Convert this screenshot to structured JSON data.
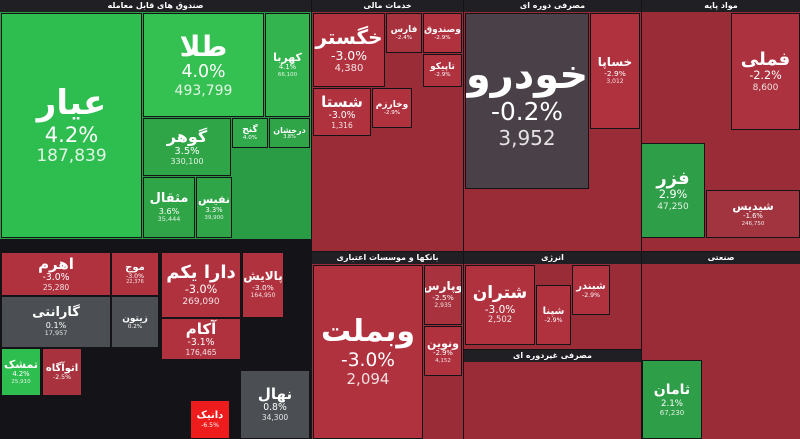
{
  "sectors": [
    {
      "name": "صندوق های قابل معامله",
      "color": "#2a9c46"
    },
    {
      "name": "خدمات مالی",
      "color": "#9a2c38"
    },
    {
      "name": "مصرفی دوره ای",
      "color": "#9a2c38"
    },
    {
      "name": "مواد پایه",
      "color": "#9a2c38"
    },
    {
      "name": "بانکها و موسسات اعتباری",
      "color": "#9a2c38"
    },
    {
      "name": "انرژی",
      "color": "#9a2c38"
    },
    {
      "name": "مصرفی غیردوره ای",
      "color": "#9a2c38"
    },
    {
      "name": "صنعتی",
      "color": "#9a2c38"
    }
  ],
  "tiles": [
    {
      "name": "عیار",
      "change": "4.2%",
      "price": "187,839",
      "color": "#2ebd4f"
    },
    {
      "name": "طلا",
      "change": "4.0%",
      "price": "493,799",
      "color": "#35c052"
    },
    {
      "name": "کهربا",
      "change": "4.1%",
      "price": "66,100",
      "color": "#34b44f"
    },
    {
      "name": "گوهر",
      "change": "3.5%",
      "price": "330,100",
      "color": "#2fa548"
    },
    {
      "name": "مثقال",
      "change": "3.6%",
      "price": "35,444",
      "color": "#2fa548"
    },
    {
      "name": "نفیس",
      "change": "3.3%",
      "price": "39,900",
      "color": "#2fa548"
    },
    {
      "name": "گنج",
      "change": "4.0%",
      "color": "#30a94a"
    },
    {
      "name": "درخشان",
      "change": "3.8%",
      "color": "#2fa548"
    },
    {
      "name": "خگستر",
      "change": "-3.0%",
      "price": "4,380",
      "color": "#b1323f"
    },
    {
      "name": "فارس",
      "change": "-2.4%",
      "color": "#a8323e"
    },
    {
      "name": "وصندوق",
      "change": "-2.9%",
      "color": "#b1323f"
    },
    {
      "name": "تاپیکو",
      "change": "-2.9%",
      "color": "#b1323f"
    },
    {
      "name": "شستا",
      "change": "-3.0%",
      "price": "1,316",
      "color": "#b1323f"
    },
    {
      "name": "وخارزم",
      "change": "-2.9%",
      "color": "#b1323f"
    },
    {
      "name": "خودرو",
      "change": "-0.2%",
      "price": "3,952",
      "color": "#4a4148"
    },
    {
      "name": "خساپا",
      "change": "-2.9%",
      "price": "3,012",
      "color": "#b1323f"
    },
    {
      "name": "فملی",
      "change": "-2.2%",
      "price": "8,600",
      "color": "#ad323f"
    },
    {
      "name": "فزر",
      "change": "2.9%",
      "price": "47,250",
      "color": "#2f9e48"
    },
    {
      "name": "شیدیس",
      "change": "-1.6%",
      "price": "246,750",
      "color": "#a23440"
    },
    {
      "name": "اهرم",
      "change": "-3.0%",
      "price": "25,280",
      "color": "#b1323f"
    },
    {
      "name": "موج",
      "change": "-3.0%",
      "price": "22,376",
      "color": "#b1323f"
    },
    {
      "name": "گارانتی",
      "change": "0.1%",
      "price": "17,957",
      "color": "#4b4f53"
    },
    {
      "name": "تمشک",
      "change": "4.2%",
      "price": "25,910",
      "color": "#2ebd4f"
    },
    {
      "name": "اتوآگاه",
      "change": "-2.5%",
      "color": "#a8323e"
    },
    {
      "name": "دارا یکم",
      "change": "-3.0%",
      "price": "269,090",
      "color": "#b1323f"
    },
    {
      "name": "پالایش",
      "change": "-3.0%",
      "price": "164,950",
      "color": "#b1323f"
    },
    {
      "name": "آکام",
      "change": "-3.1%",
      "price": "176,465",
      "color": "#b1323f"
    },
    {
      "name": "نهال",
      "change": "0.8%",
      "price": "34,300",
      "color": "#4b4f53"
    },
    {
      "name": "دانیک",
      "change": "-6.5%",
      "color": "#ee1c1c"
    },
    {
      "name": "وبملت",
      "change": "-3.0%",
      "price": "2,094",
      "color": "#b1323f"
    },
    {
      "name": "وپارس",
      "change": "-2.5%",
      "price": "2,935",
      "color": "#a8323e"
    },
    {
      "name": "ونوین",
      "change": "-2.9%",
      "price": "4,152",
      "color": "#b1323f"
    },
    {
      "name": "شتران",
      "change": "-3.0%",
      "price": "2,502",
      "color": "#b1323f"
    },
    {
      "name": "شپنا",
      "change": "-2.9%",
      "color": "#b1323f"
    },
    {
      "name": "شبندر",
      "change": "-2.9%",
      "color": "#b1323f"
    },
    {
      "name": "ثامان",
      "change": "2.1%",
      "price": "67,230",
      "color": "#2f9e48"
    },
    {
      "name": "زیتون",
      "change": "0.2%",
      "color": "#4b4f53"
    }
  ]
}
